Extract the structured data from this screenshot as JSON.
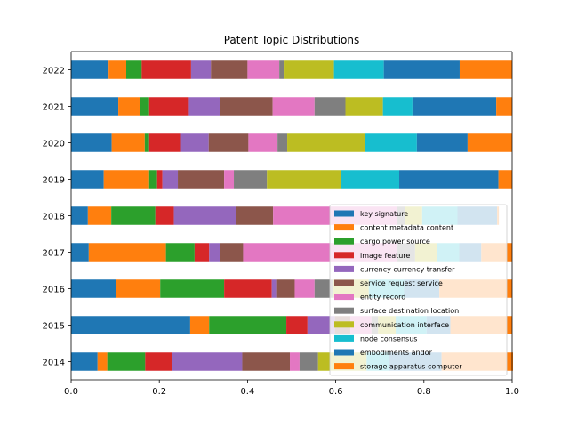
{
  "chart_data": {
    "type": "bar",
    "orientation": "horizontal",
    "stacked": true,
    "title": "Patent Topic Distributions",
    "xlabel": "",
    "ylabel": "",
    "xlim": [
      0,
      1.0
    ],
    "xticks": [
      "0.0",
      "0.2",
      "0.4",
      "0.6",
      "0.8",
      "1.0"
    ],
    "grid": false,
    "legend_position": "lower-right",
    "categories": [
      "2014",
      "2015",
      "2016",
      "2017",
      "2018",
      "2019",
      "2020",
      "2021",
      "2022"
    ],
    "series": [
      {
        "name": "key signature",
        "color": "#1f77b4",
        "values": [
          0.06,
          0.27,
          0.102,
          0.04,
          0.038,
          0.074,
          0.092,
          0.107,
          0.085
        ]
      },
      {
        "name": "content metadata content",
        "color": "#ff7f0e",
        "values": [
          0.022,
          0.043,
          0.1,
          0.175,
          0.053,
          0.103,
          0.075,
          0.05,
          0.04
        ]
      },
      {
        "name": "cargo power source",
        "color": "#2ca02c",
        "values": [
          0.086,
          0.175,
          0.145,
          0.065,
          0.1,
          0.018,
          0.01,
          0.02,
          0.035
        ]
      },
      {
        "name": "image feature",
        "color": "#d62728",
        "values": [
          0.06,
          0.048,
          0.108,
          0.033,
          0.042,
          0.012,
          0.072,
          0.09,
          0.112
        ]
      },
      {
        "name": "currency currency transfer",
        "color": "#9467bd",
        "values": [
          0.16,
          0.062,
          0.012,
          0.025,
          0.14,
          0.035,
          0.063,
          0.07,
          0.045
        ]
      },
      {
        "name": "service request service",
        "color": "#8c564b",
        "values": [
          0.108,
          0.035,
          0.04,
          0.052,
          0.085,
          0.105,
          0.09,
          0.12,
          0.083
        ]
      },
      {
        "name": "entity record",
        "color": "#e377c2",
        "values": [
          0.022,
          0.048,
          0.045,
          0.35,
          0.28,
          0.022,
          0.066,
          0.095,
          0.072
        ]
      },
      {
        "name": "surface destination location",
        "color": "#7f7f7f",
        "values": [
          0.042,
          0.015,
          0.043,
          0.04,
          0.02,
          0.075,
          0.022,
          0.07,
          0.012
        ]
      },
      {
        "name": "communication interface",
        "color": "#bcbd22",
        "values": [
          0.11,
          0.04,
          0.08,
          0.05,
          0.038,
          0.167,
          0.177,
          0.085,
          0.112
        ]
      },
      {
        "name": "node consensus",
        "color": "#17becf",
        "values": [
          0.05,
          0.07,
          0.08,
          0.05,
          0.08,
          0.133,
          0.117,
          0.067,
          0.113
        ]
      },
      {
        "name": "embodiments andor",
        "color": "#1f77b4",
        "values": [
          0.12,
          0.054,
          0.08,
          0.05,
          0.09,
          0.225,
          0.115,
          0.19,
          0.172
        ]
      },
      {
        "name": "storage apparatus computer",
        "color": "#ff7f0e",
        "values": [
          0.162,
          0.14,
          0.165,
          0.07,
          0.004,
          0.031,
          0.101,
          0.036,
          0.119
        ]
      }
    ]
  }
}
